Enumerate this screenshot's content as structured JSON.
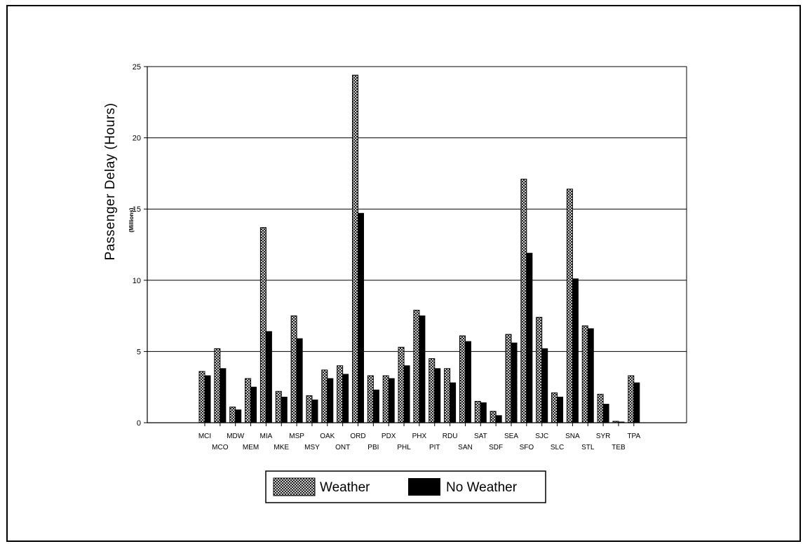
{
  "chart_data": {
    "type": "bar",
    "title": "",
    "xlabel": "",
    "ylabel": "Passenger Delay (Hours)",
    "ylabel_unit": "(Millions)",
    "ylim": [
      0,
      25
    ],
    "yticks": [
      0,
      5,
      10,
      15,
      20,
      25
    ],
    "grid": true,
    "legend_position": "bottom-center",
    "categories": [
      "MCI",
      "MCO",
      "MDW",
      "MEM",
      "MIA",
      "MKE",
      "MSP",
      "MSY",
      "OAK",
      "ONT",
      "ORD",
      "PBI",
      "PDX",
      "PHL",
      "PHX",
      "PIT",
      "RDU",
      "SAN",
      "SAT",
      "SDF",
      "SEA",
      "SFO",
      "SJC",
      "SLC",
      "SNA",
      "STL",
      "SYR",
      "TEB",
      "TPA"
    ],
    "series": [
      {
        "name": "Weather",
        "pattern": "crosshatch",
        "values": [
          3.6,
          5.2,
          1.1,
          3.1,
          13.7,
          2.2,
          7.5,
          1.9,
          3.7,
          4.0,
          24.4,
          3.3,
          3.3,
          5.3,
          7.9,
          4.5,
          3.8,
          6.1,
          1.5,
          0.8,
          6.2,
          17.1,
          7.4,
          2.1,
          16.4,
          6.8,
          2.0,
          0.1,
          3.3
        ]
      },
      {
        "name": "No Weather",
        "color": "#000000",
        "values": [
          3.3,
          3.8,
          0.9,
          2.5,
          6.4,
          1.8,
          5.9,
          1.6,
          3.1,
          3.4,
          14.7,
          2.3,
          3.1,
          4.0,
          7.5,
          3.8,
          2.8,
          5.7,
          1.4,
          0.5,
          5.6,
          11.9,
          5.2,
          1.8,
          10.1,
          6.6,
          1.3,
          0.05,
          2.8
        ]
      }
    ]
  }
}
